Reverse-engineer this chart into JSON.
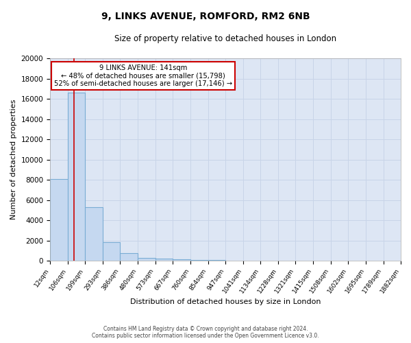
{
  "title1": "9, LINKS AVENUE, ROMFORD, RM2 6NB",
  "title2": "Size of property relative to detached houses in London",
  "xlabel": "Distribution of detached houses by size in London",
  "ylabel": "Number of detached properties",
  "bin_labels": [
    "12sqm",
    "106sqm",
    "199sqm",
    "293sqm",
    "386sqm",
    "480sqm",
    "573sqm",
    "667sqm",
    "760sqm",
    "854sqm",
    "947sqm",
    "1041sqm",
    "1134sqm",
    "1228sqm",
    "1321sqm",
    "1415sqm",
    "1508sqm",
    "1602sqm",
    "1695sqm",
    "1789sqm",
    "1882sqm"
  ],
  "bar_values": [
    8100,
    16600,
    5300,
    1800,
    750,
    300,
    200,
    150,
    100,
    80,
    0,
    0,
    0,
    0,
    0,
    0,
    0,
    0,
    0,
    0
  ],
  "bar_color": "#c5d8f0",
  "bar_edge_color": "#7aadd4",
  "red_line_x": 141,
  "bin_edges": [
    12,
    106,
    199,
    293,
    386,
    480,
    573,
    667,
    760,
    854,
    947,
    1041,
    1134,
    1228,
    1321,
    1415,
    1508,
    1602,
    1695,
    1789,
    1882
  ],
  "ylim": [
    0,
    20000
  ],
  "yticks": [
    0,
    2000,
    4000,
    6000,
    8000,
    10000,
    12000,
    14000,
    16000,
    18000,
    20000
  ],
  "annotation_title": "9 LINKS AVENUE: 141sqm",
  "annotation_line1": "← 48% of detached houses are smaller (15,798)",
  "annotation_line2": "52% of semi-detached houses are larger (17,146) →",
  "annotation_box_color": "#ffffff",
  "annotation_box_edge": "#cc0000",
  "grid_color": "#c8d4e8",
  "background_color": "#dde6f4",
  "fig_background": "#ffffff",
  "footer1": "Contains HM Land Registry data © Crown copyright and database right 2024.",
  "footer2": "Contains public sector information licensed under the Open Government Licence v3.0."
}
